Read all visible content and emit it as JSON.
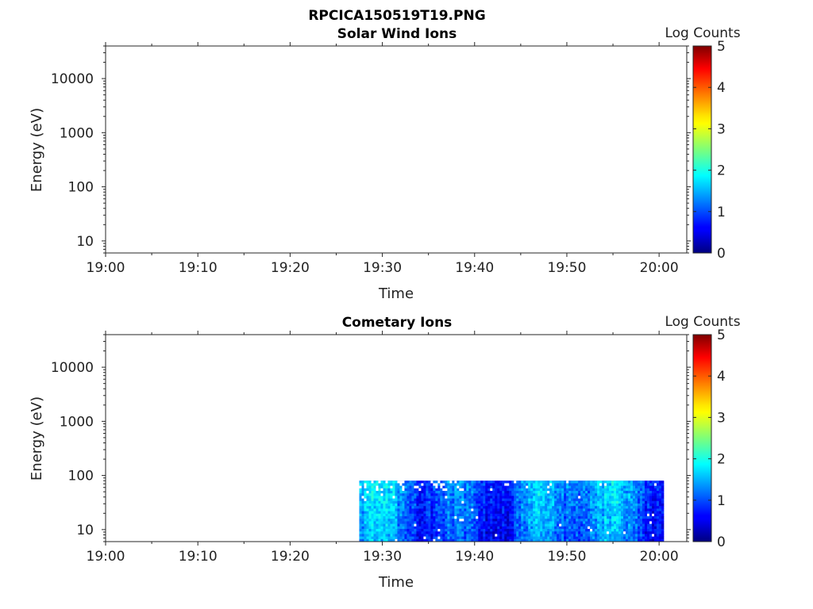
{
  "figure": {
    "title": "RPCICA150519T19.PNG"
  },
  "colorbar": {
    "label": "Log Counts",
    "ticks": [
      "0",
      "1",
      "2",
      "3",
      "4",
      "5"
    ],
    "range": [
      0,
      5
    ],
    "colormap": "jet"
  },
  "chart_data": [
    {
      "type": "heatmap",
      "title": "Solar Wind Ions",
      "xlabel": "Time",
      "ylabel": "Energy (eV)",
      "yscale": "log",
      "ylim": [
        6,
        40000
      ],
      "xlim": [
        "19:00",
        "20:03"
      ],
      "xticks": [
        "19:00",
        "19:10",
        "19:20",
        "19:30",
        "19:40",
        "19:50",
        "20:00"
      ],
      "yticks": [
        "10",
        "100",
        "1000",
        "10000"
      ],
      "data_present": false,
      "colorbar_label": "Log Counts"
    },
    {
      "type": "heatmap",
      "title": "Cometary Ions",
      "xlabel": "Time",
      "ylabel": "Energy (eV)",
      "yscale": "log",
      "ylim": [
        6,
        40000
      ],
      "xlim": [
        "19:00",
        "20:03"
      ],
      "xticks": [
        "19:00",
        "19:10",
        "19:20",
        "19:30",
        "19:40",
        "19:50",
        "20:00"
      ],
      "yticks": [
        "10",
        "100",
        "1000",
        "10000"
      ],
      "data_present": true,
      "data_time_range": [
        "19:27:30",
        "20:00:30"
      ],
      "data_energy_range": [
        6,
        80
      ],
      "typical_log_counts": [
        0.5,
        1.8
      ],
      "colorbar_label": "Log Counts"
    }
  ]
}
